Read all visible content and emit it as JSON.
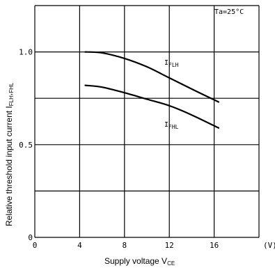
{
  "chart_data": {
    "type": "line",
    "xlabel": {
      "base": "Supply voltage V",
      "sub": "CE"
    },
    "ylabel": {
      "base": "Relative threshold input current I",
      "sub": "FLH",
      "sep": ",",
      "sub2": "FHL"
    },
    "xlim": [
      0,
      20
    ],
    "ylim": [
      0,
      1.25
    ],
    "x_ticks": [
      0,
      4,
      8,
      12,
      16
    ],
    "x_tick_labels": [
      "0",
      "4",
      "8",
      "12",
      "16"
    ],
    "x_unit": "(V)",
    "y_ticks": [
      0,
      0.5,
      1.0
    ],
    "y_tick_labels": [
      "0",
      "0.5",
      "1.0"
    ],
    "grid": true,
    "annotation": "Ta=25°C",
    "series": [
      {
        "name": "FLH",
        "label_base": "I",
        "x": [
          4.5,
          6,
          8,
          10,
          12,
          14,
          16.4
        ],
        "y": [
          1.0,
          0.995,
          0.965,
          0.92,
          0.86,
          0.8,
          0.73
        ]
      },
      {
        "name": "FHL",
        "label_base": "I",
        "x": [
          4.5,
          6,
          8,
          10,
          12,
          14,
          16.4
        ],
        "y": [
          0.82,
          0.81,
          0.78,
          0.745,
          0.71,
          0.66,
          0.59
        ]
      }
    ]
  }
}
